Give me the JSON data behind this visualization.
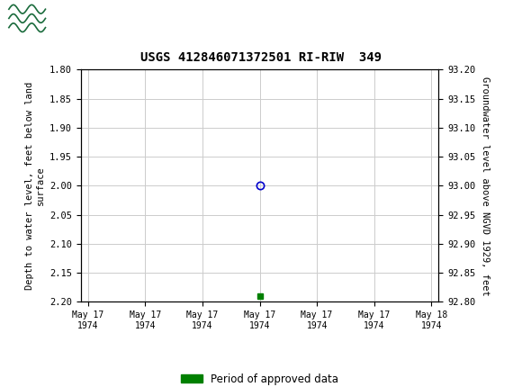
{
  "title": "USGS 412846071372501 RI-RIW  349",
  "ylabel_left": "Depth to water level, feet below land\nsurface",
  "ylabel_right": "Groundwater level above NGVD 1929, feet",
  "ylim_left": [
    2.2,
    1.8
  ],
  "ylim_right": [
    92.8,
    93.2
  ],
  "yticks_left": [
    1.8,
    1.85,
    1.9,
    1.95,
    2.0,
    2.05,
    2.1,
    2.15,
    2.2
  ],
  "yticks_right": [
    93.2,
    93.15,
    93.1,
    93.05,
    93.0,
    92.95,
    92.9,
    92.85,
    92.8
  ],
  "data_point_y": 2.0,
  "green_point_y": 2.19,
  "header_color": "#1a6b3c",
  "grid_color": "#cccccc",
  "background_color": "#ffffff",
  "plot_bg_color": "#ffffff",
  "data_point_color": "#0000cc",
  "approved_color": "#008000",
  "legend_label": "Period of approved data",
  "x_tick_hours": [
    0,
    4,
    8,
    12,
    16,
    20,
    24
  ],
  "x_tick_labels": [
    "May 17\n1974",
    "May 17\n1974",
    "May 17\n1974",
    "May 17\n1974",
    "May 17\n1974",
    "May 17\n1974",
    "May 18\n1974"
  ],
  "data_x": 12.0,
  "green_x": 12.0
}
